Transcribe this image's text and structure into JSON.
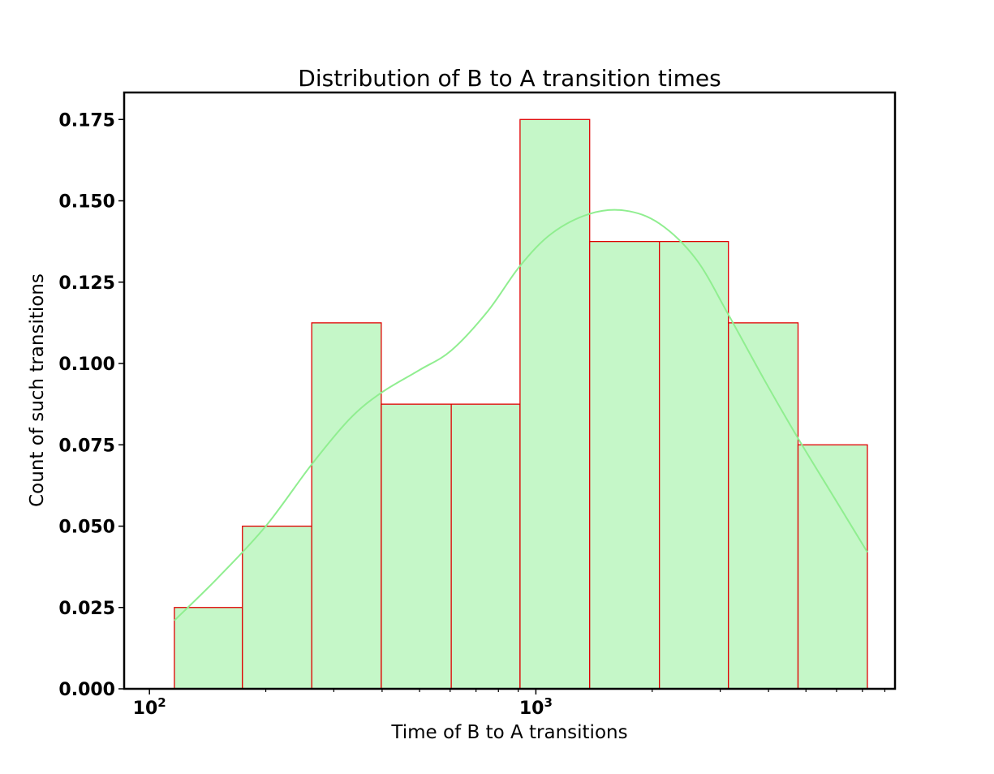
{
  "chart_data": {
    "type": "bar",
    "title": "Distribution of B to A transition times",
    "xlabel": "Time of B to A transitions",
    "ylabel": "Count of such transitions",
    "x_scale": "log",
    "xlim": [
      86,
      8500
    ],
    "ylim": [
      0,
      0.1833
    ],
    "bins": [
      {
        "start": 116,
        "end": 174,
        "value": 0.025
      },
      {
        "start": 174,
        "end": 263,
        "value": 0.05
      },
      {
        "start": 263,
        "end": 398,
        "value": 0.1125
      },
      {
        "start": 398,
        "end": 604,
        "value": 0.0875
      },
      {
        "start": 604,
        "end": 910,
        "value": 0.0875
      },
      {
        "start": 910,
        "end": 1378,
        "value": 0.175
      },
      {
        "start": 1378,
        "end": 2088,
        "value": 0.1375
      },
      {
        "start": 2088,
        "end": 3150,
        "value": 0.1375
      },
      {
        "start": 3150,
        "end": 4770,
        "value": 0.1125
      },
      {
        "start": 4770,
        "end": 7210,
        "value": 0.075
      }
    ],
    "kde": {
      "x": [
        116,
        150,
        200,
        263,
        330,
        398,
        500,
        604,
        750,
        910,
        1100,
        1378,
        1700,
        2088,
        2600,
        3150,
        3900,
        4770,
        5900,
        7210
      ],
      "y": [
        0.021,
        0.034,
        0.05,
        0.069,
        0.083,
        0.091,
        0.098,
        0.104,
        0.116,
        0.13,
        0.14,
        0.146,
        0.147,
        0.143,
        0.132,
        0.115,
        0.095,
        0.077,
        0.059,
        0.042
      ]
    },
    "y_ticks": [
      {
        "value": 0.0,
        "label": "0.000"
      },
      {
        "value": 0.025,
        "label": "0.025"
      },
      {
        "value": 0.05,
        "label": "0.050"
      },
      {
        "value": 0.075,
        "label": "0.075"
      },
      {
        "value": 0.1,
        "label": "0.100"
      },
      {
        "value": 0.125,
        "label": "0.125"
      },
      {
        "value": 0.15,
        "label": "0.150"
      },
      {
        "value": 0.175,
        "label": "0.175"
      }
    ],
    "x_major_ticks": [
      {
        "value": 100,
        "base": "10",
        "exp": "2"
      },
      {
        "value": 1000,
        "base": "10",
        "exp": "3"
      }
    ],
    "x_minor_ticks": [
      200,
      300,
      400,
      500,
      600,
      700,
      800,
      900,
      2000,
      3000,
      4000,
      5000,
      6000,
      7000,
      8000
    ],
    "grid": false,
    "legend": "none",
    "colors": {
      "bar_fill": "#c5f7c8",
      "bar_edge": "#e00000",
      "kde_line": "#90ee90",
      "axis": "#000000"
    }
  }
}
